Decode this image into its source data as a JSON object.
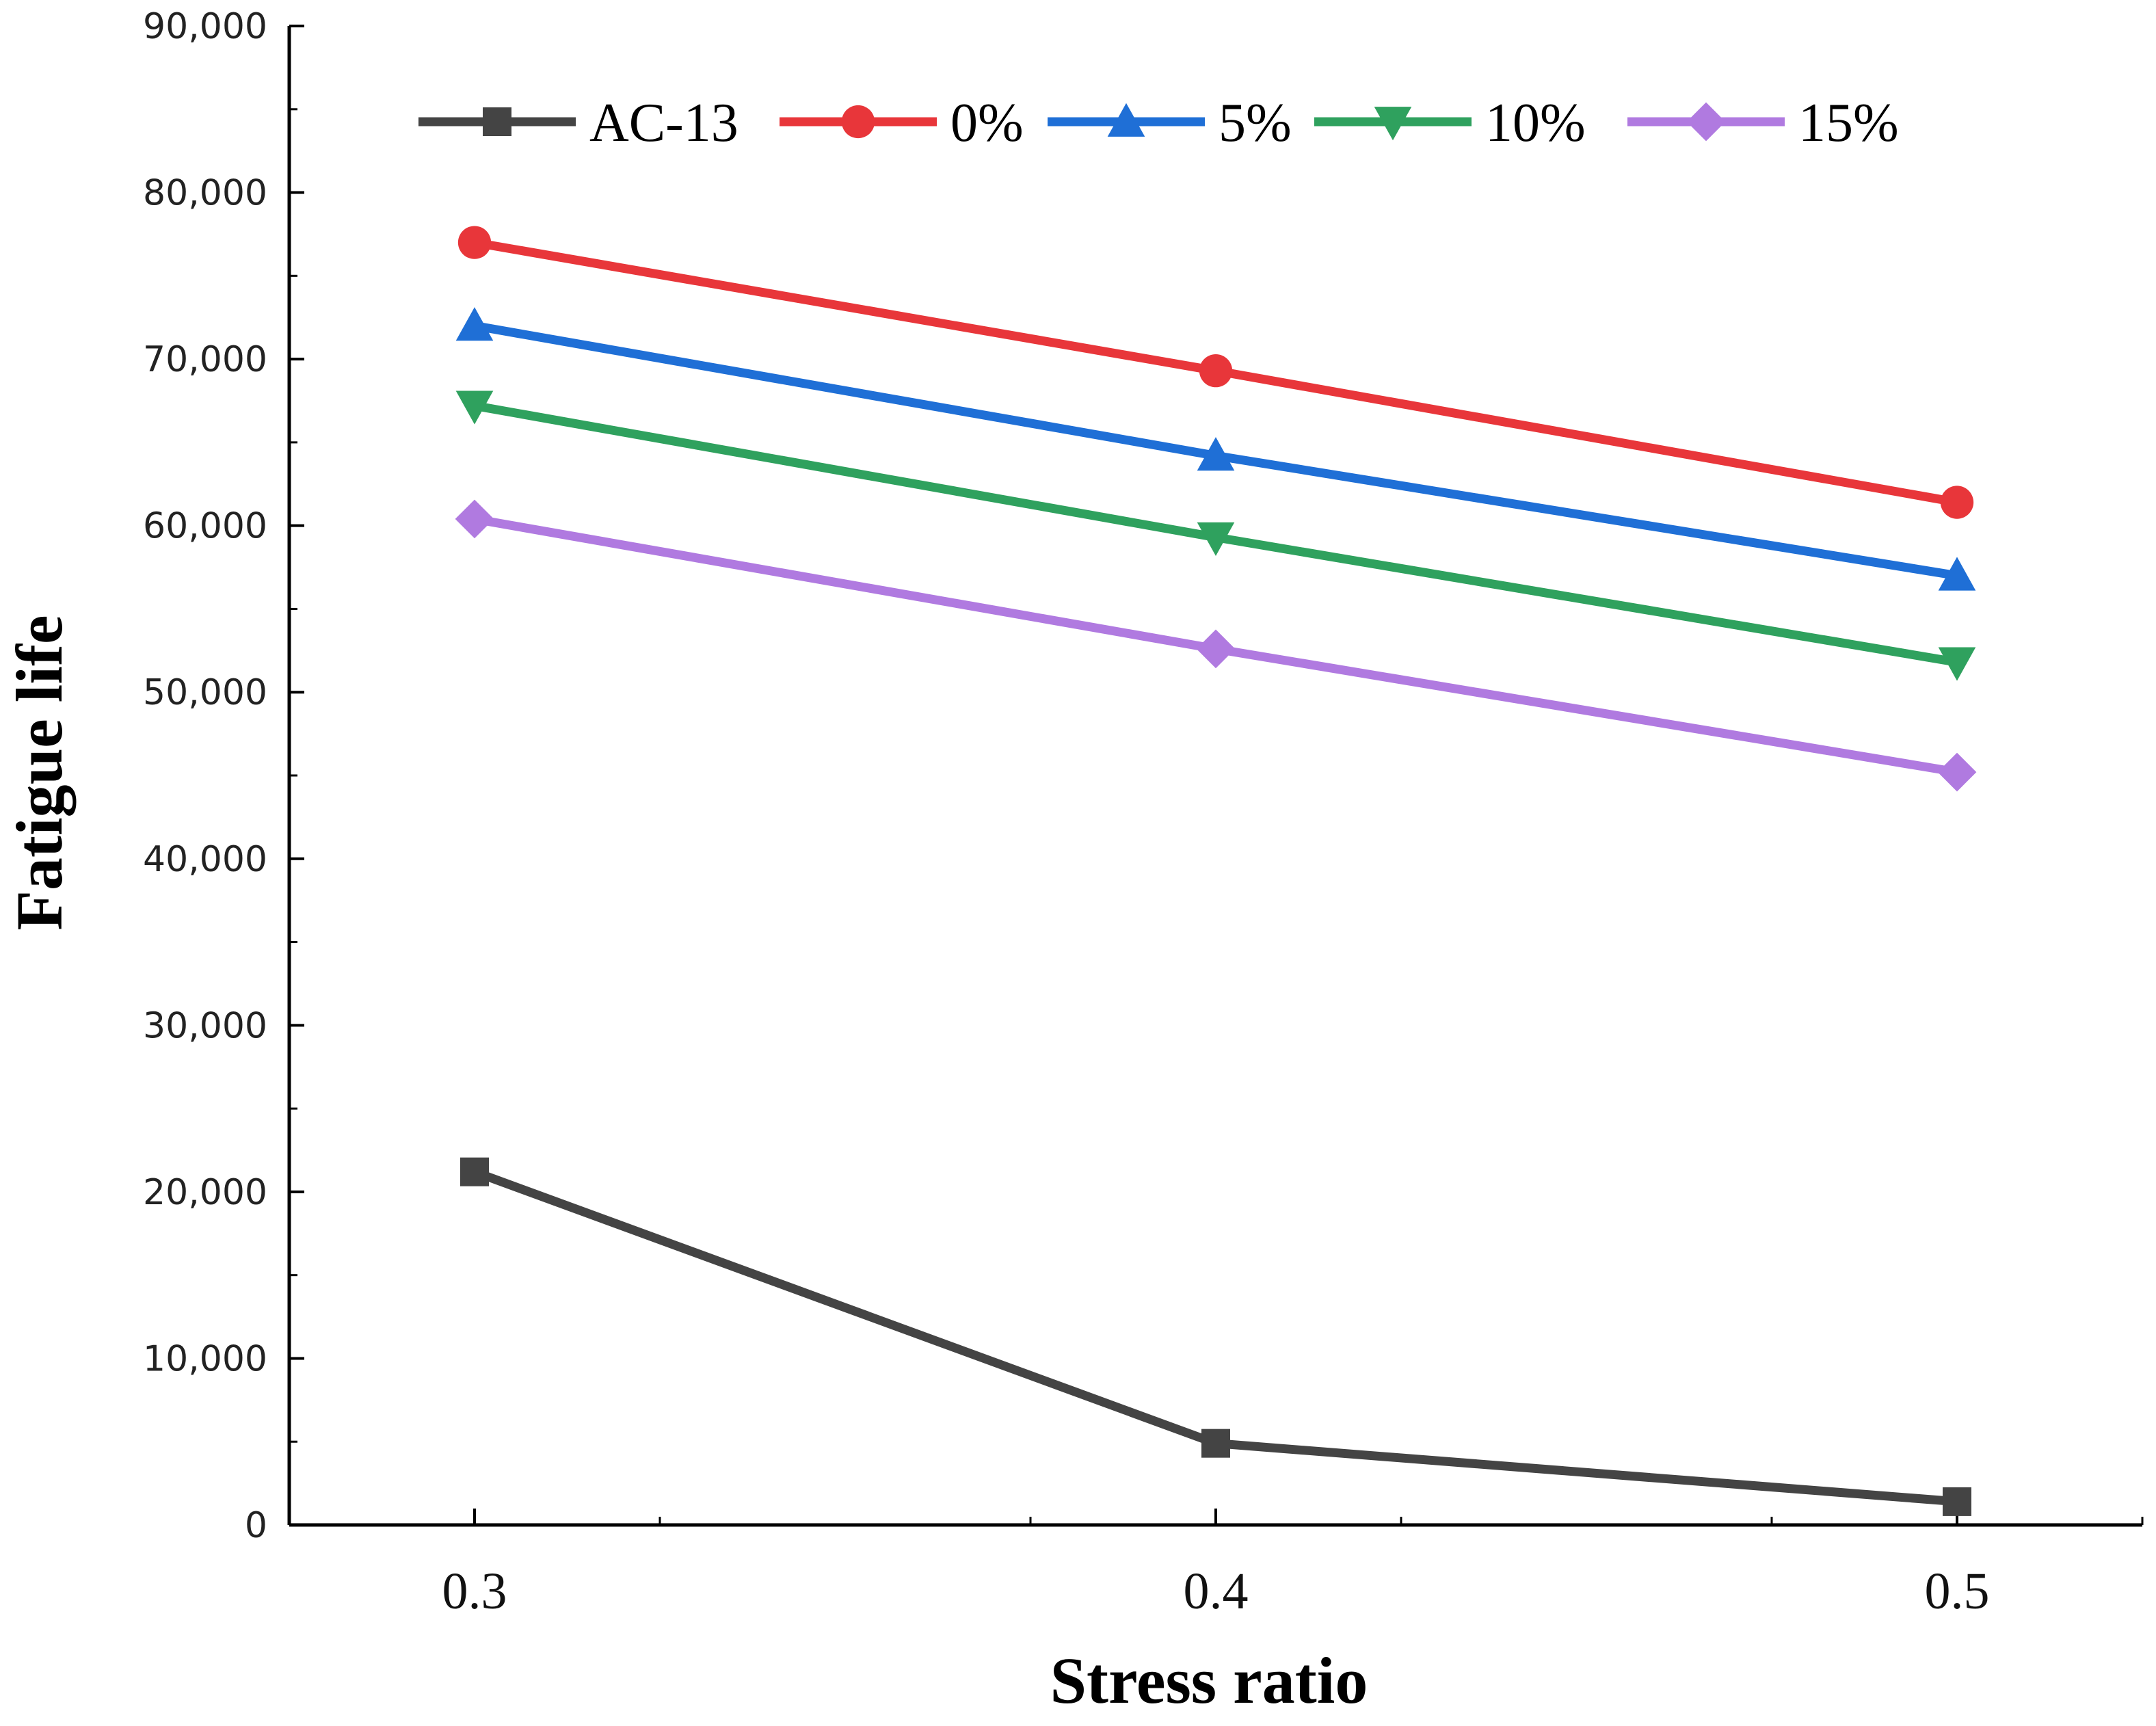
{
  "chart_data": {
    "type": "line",
    "title": "",
    "xlabel": "Stress ratio",
    "ylabel": "Fatigue life",
    "x": [
      0.3,
      0.4,
      0.5
    ],
    "x_tick_labels": [
      "0.3",
      "0.4",
      "0.5"
    ],
    "xlim": [
      0.275,
      0.525
    ],
    "ylim": [
      0,
      90000
    ],
    "y_ticks": [
      0,
      10000,
      20000,
      30000,
      40000,
      50000,
      60000,
      70000,
      80000,
      90000
    ],
    "y_tick_labels": [
      "0",
      "10,000",
      "20,000",
      "30,000",
      "40,000",
      "50,000",
      "60,000",
      "70,000",
      "80,000",
      "90,000"
    ],
    "grid": false,
    "legend_position": "top",
    "series": [
      {
        "name": "AC-13",
        "color": "#444444",
        "marker": "square",
        "values": [
          21200,
          4900,
          1400
        ]
      },
      {
        "name": "0%",
        "color": "#e8363a",
        "marker": "circle",
        "values": [
          77000,
          69300,
          61400
        ]
      },
      {
        "name": "5%",
        "color": "#1f6fd6",
        "marker": "triangle-up",
        "values": [
          72000,
          64200,
          57000
        ]
      },
      {
        "name": "10%",
        "color": "#2fa15e",
        "marker": "triangle-down",
        "values": [
          67200,
          59300,
          51800
        ]
      },
      {
        "name": "15%",
        "color": "#b07ae0",
        "marker": "diamond",
        "values": [
          60400,
          52600,
          45200
        ]
      }
    ]
  }
}
